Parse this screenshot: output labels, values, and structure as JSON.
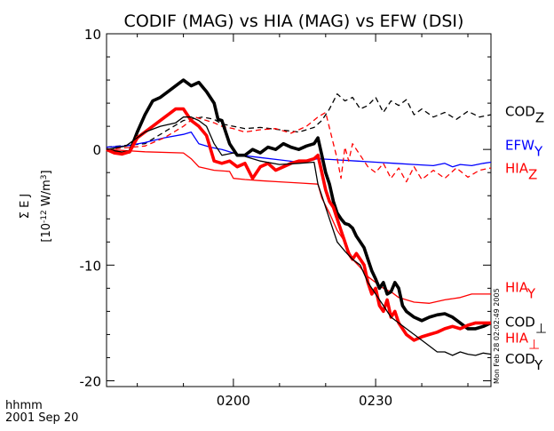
{
  "chart_data": {
    "type": "line",
    "title": "CODIF (MAG) vs HIA (MAG) vs EFW (DSI)",
    "ylabel": "Σ E J",
    "yunit": "[10",
    "yunit_exp": "-12",
    "yunit_tail": " W/m",
    "yunit_tail_exp": "3",
    "yunit_close": "]",
    "x_format_label": "hhmm",
    "date_label": "2001 Sep 20",
    "xlim": [
      0,
      100
    ],
    "ylim": [
      -20.5,
      10
    ],
    "yticks": [
      10,
      0,
      -10,
      -20
    ],
    "yticks_labels": [
      "10",
      "0",
      "-10",
      "-20"
    ],
    "xticks": [
      {
        "x": 33,
        "label": "0200"
      },
      {
        "x": 70,
        "label": "0230"
      }
    ],
    "grid": false,
    "side_note": "Mon Feb 28 02:02:49 2005",
    "series": [
      {
        "name": "COD",
        "sub": "Z",
        "color": "#000000",
        "style": "dashed",
        "label_pos": [
          3.2
        ],
        "x": [
          0,
          10,
          15,
          20,
          25,
          28,
          30,
          33,
          36,
          40,
          45,
          50,
          54,
          56,
          58,
          60,
          62,
          64,
          66,
          68,
          70,
          72,
          74,
          76,
          78,
          80,
          82,
          85,
          88,
          91,
          94,
          97,
          100
        ],
        "values": [
          0.2,
          0.5,
          1.5,
          2.5,
          2.8,
          2.6,
          2.2,
          2.0,
          1.8,
          1.9,
          1.7,
          1.5,
          1.9,
          2.5,
          3.5,
          4.8,
          4.2,
          4.5,
          3.5,
          3.8,
          4.5,
          3.2,
          4.2,
          3.8,
          4.3,
          3.0,
          3.5,
          2.8,
          3.2,
          2.6,
          3.3,
          2.8,
          3.0
        ]
      },
      {
        "name": "EFW",
        "sub": "Y",
        "color": "#0000ff",
        "style": "solid",
        "label_pos": [
          0.3
        ],
        "x": [
          0,
          5,
          10,
          15,
          20,
          22,
          24,
          27,
          30,
          35,
          40,
          45,
          50,
          55,
          60,
          65,
          70,
          75,
          80,
          85,
          88,
          90,
          92,
          95,
          98,
          100
        ],
        "values": [
          0.2,
          0.3,
          0.6,
          1.0,
          1.3,
          1.5,
          0.5,
          0.2,
          0.0,
          -0.5,
          -0.7,
          -0.9,
          -1.1,
          -0.8,
          -0.9,
          -1.0,
          -1.1,
          -1.2,
          -1.3,
          -1.4,
          -1.2,
          -1.5,
          -1.3,
          -1.4,
          -1.2,
          -1.1
        ]
      },
      {
        "name": "HIA",
        "sub": "Z",
        "color": "#ff0000",
        "style": "dashed",
        "label_pos": [
          -1.7
        ],
        "x": [
          0,
          10,
          15,
          20,
          23,
          25,
          28,
          30,
          33,
          36,
          40,
          44,
          48,
          52,
          55,
          57,
          59,
          60,
          61,
          62,
          63,
          64,
          66,
          68,
          70,
          72,
          74,
          76,
          78,
          80,
          82,
          85,
          88,
          91,
          94,
          97,
          100
        ],
        "values": [
          0.0,
          0.3,
          1.0,
          2.0,
          2.8,
          2.6,
          2.3,
          2.0,
          1.8,
          1.5,
          1.7,
          1.8,
          1.4,
          2.0,
          2.8,
          3.2,
          0.5,
          -0.8,
          -2.5,
          0.2,
          -1.0,
          0.5,
          -0.5,
          -1.5,
          -2.0,
          -1.2,
          -2.5,
          -1.6,
          -2.8,
          -1.5,
          -2.6,
          -1.8,
          -2.5,
          -1.6,
          -2.4,
          -1.8,
          -1.6
        ]
      },
      {
        "name": "HIA",
        "sub": "Y",
        "color": "#ff0000",
        "style": "solid",
        "label_pos": [
          -12.0
        ],
        "x": [
          0,
          10,
          20,
          22,
          24,
          28,
          32,
          33,
          36,
          40,
          45,
          50,
          55,
          56,
          58,
          60,
          62,
          64,
          66,
          68,
          70,
          72,
          74,
          76,
          78,
          80,
          84,
          88,
          92,
          95,
          100
        ],
        "values": [
          0.0,
          -0.2,
          -0.3,
          -0.8,
          -1.5,
          -1.8,
          -1.9,
          -2.5,
          -2.6,
          -2.7,
          -2.8,
          -2.9,
          -3.0,
          -4.2,
          -5.5,
          -7.0,
          -8.0,
          -9.5,
          -10.2,
          -11.0,
          -11.5,
          -12.0,
          -12.3,
          -12.8,
          -13.0,
          -13.2,
          -13.3,
          -13.0,
          -12.8,
          -12.5,
          -12.5
        ]
      },
      {
        "name": "COD",
        "sub": "⊥",
        "color": "#000000",
        "style": "solid",
        "width": 3.6,
        "label_pos": [
          -15.0
        ],
        "x": [
          0,
          2,
          4,
          6,
          8,
          10,
          12,
          14,
          16,
          18,
          20,
          22,
          24,
          26,
          28,
          29,
          30,
          32,
          34,
          36,
          38,
          40,
          42,
          44,
          46,
          48,
          50,
          52,
          54,
          55,
          56,
          57,
          58,
          59,
          60,
          61,
          62,
          63,
          64,
          65,
          66,
          67,
          68,
          69,
          70,
          71,
          72,
          73,
          74,
          75,
          76,
          77,
          78,
          80,
          82,
          84,
          86,
          88,
          90,
          92,
          94,
          96,
          98,
          100
        ],
        "values": [
          0,
          -0.2,
          -0.3,
          -0.2,
          1.5,
          3.0,
          4.2,
          4.5,
          5.0,
          5.5,
          6.0,
          5.5,
          5.8,
          5.0,
          4.0,
          2.6,
          2.5,
          0.5,
          -0.5,
          -0.5,
          0.0,
          -0.3,
          0.2,
          0.0,
          0.5,
          0.2,
          0.0,
          0.3,
          0.5,
          1.0,
          -0.5,
          -2.0,
          -3.0,
          -4.5,
          -5.5,
          -6.0,
          -6.4,
          -6.5,
          -6.8,
          -7.5,
          -8.0,
          -8.5,
          -9.5,
          -10.5,
          -11.2,
          -12.0,
          -11.5,
          -12.5,
          -12.3,
          -11.5,
          -12.0,
          -13.5,
          -14.0,
          -14.5,
          -14.8,
          -14.5,
          -14.3,
          -14.2,
          -14.5,
          -15.0,
          -15.5,
          -15.5,
          -15.3,
          -15.0
        ]
      },
      {
        "name": "HIA",
        "sub": "⊥",
        "color": "#ff0000",
        "style": "solid",
        "width": 3.6,
        "label_pos": [
          -16.4
        ],
        "x": [
          0,
          2,
          4,
          6,
          8,
          10,
          12,
          14,
          16,
          18,
          20,
          22,
          24,
          26,
          28,
          30,
          32,
          34,
          36,
          38,
          40,
          42,
          44,
          46,
          48,
          50,
          52,
          54,
          55,
          56,
          57,
          58,
          59,
          60,
          61,
          62,
          63,
          64,
          65,
          66,
          67,
          68,
          69,
          70,
          71,
          72,
          73,
          74,
          75,
          76,
          77,
          78,
          80,
          82,
          84,
          86,
          88,
          90,
          92,
          94,
          96,
          98,
          100
        ],
        "values": [
          0,
          -0.3,
          -0.4,
          -0.2,
          1.0,
          1.5,
          2.0,
          2.5,
          3.0,
          3.5,
          3.5,
          2.5,
          2.0,
          1.2,
          -1.0,
          -1.2,
          -1.0,
          -1.5,
          -1.2,
          -2.5,
          -1.5,
          -1.2,
          -1.8,
          -1.5,
          -1.2,
          -1.0,
          -1.0,
          -0.8,
          -0.5,
          -2.0,
          -3.5,
          -4.5,
          -5.0,
          -6.0,
          -7.0,
          -8.0,
          -9.0,
          -9.5,
          -9.0,
          -9.5,
          -10.0,
          -11.5,
          -12.5,
          -12.0,
          -13.5,
          -14.0,
          -13.0,
          -14.5,
          -14.0,
          -15.0,
          -15.5,
          -16.0,
          -16.5,
          -16.2,
          -16.0,
          -15.8,
          -15.5,
          -15.3,
          -15.5,
          -15.2,
          -15.0,
          -15.0,
          -15.0
        ]
      },
      {
        "name": "COD",
        "sub": "Y",
        "color": "#000000",
        "style": "solid",
        "label_pos": [
          -18.2
        ],
        "x": [
          0,
          5,
          10,
          14,
          18,
          20,
          22,
          24,
          26,
          28,
          30,
          33,
          36,
          40,
          45,
          50,
          54,
          55,
          56,
          58,
          60,
          62,
          64,
          66,
          68,
          70,
          72,
          74,
          76,
          78,
          80,
          82,
          84,
          86,
          88,
          90,
          92,
          94,
          96,
          98,
          100
        ],
        "values": [
          0.0,
          0.3,
          1.5,
          2.0,
          2.3,
          2.8,
          2.8,
          2.5,
          2.0,
          0.5,
          -0.5,
          -0.3,
          -0.6,
          -1.0,
          -1.3,
          -1.2,
          -1.1,
          -3.0,
          -4.0,
          -6.0,
          -8.0,
          -8.8,
          -9.5,
          -10.0,
          -11.5,
          -12.5,
          -13.5,
          -14.5,
          -15.0,
          -15.5,
          -16.0,
          -16.5,
          -17.0,
          -17.5,
          -17.5,
          -17.8,
          -17.5,
          -17.7,
          -17.8,
          -17.6,
          -17.7
        ]
      }
    ]
  }
}
